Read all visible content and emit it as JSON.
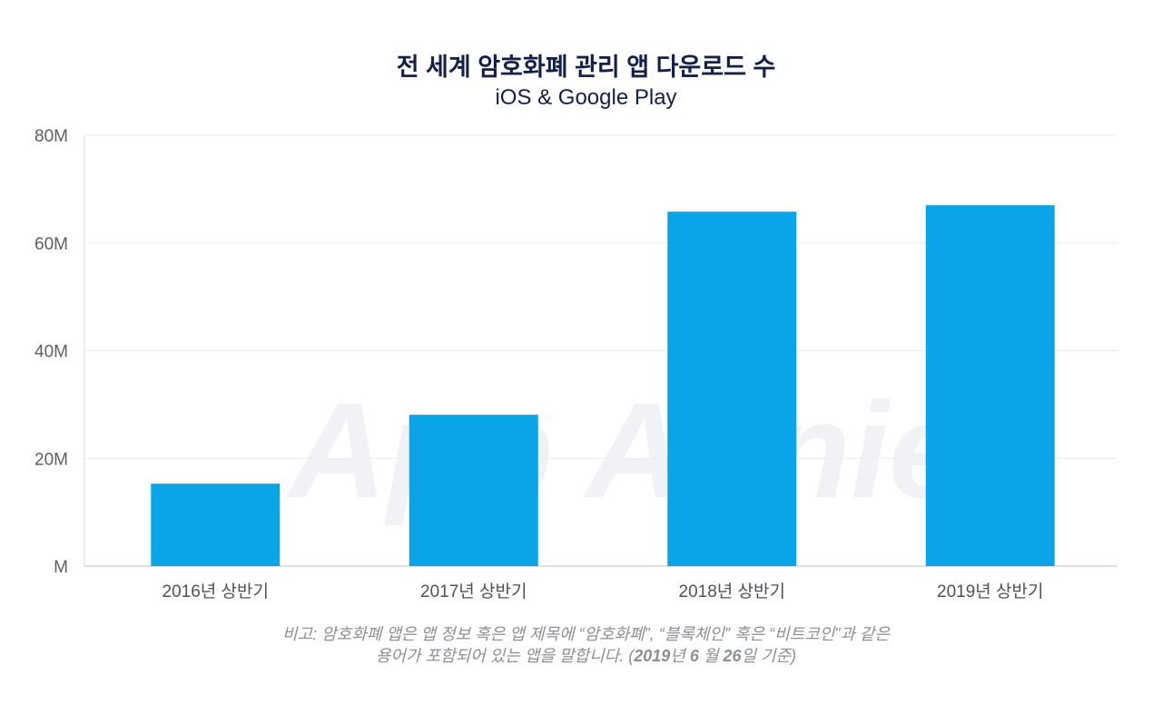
{
  "chart_data": {
    "type": "bar",
    "title": "전 세계 암호화폐 관리 앱 다운로드 수",
    "subtitle": "iOS & Google Play",
    "categories": [
      "2016년 상반기",
      "2017년 상반기",
      "2018년 상반기",
      "2019년 상반기"
    ],
    "values": [
      15.3,
      28.1,
      65.8,
      67.0
    ],
    "unit": "M",
    "ylim": [
      0,
      80
    ],
    "yticks": [
      0,
      20,
      40,
      60,
      80
    ],
    "ytick_labels": [
      "M",
      "20M",
      "40M",
      "60M",
      "80M"
    ],
    "xlabel": "",
    "ylabel": "",
    "grid": true,
    "bar_color": "#0aa5e8",
    "watermark": "App Annie"
  },
  "note": {
    "line1": "비고: 암호화폐 앱은 앱 정보 혹은 앱  제목에 “암호화폐”, “블록체인” 혹은  “비트코인”과 같은",
    "line2_prefix": "용어가 포함되어 있는 앱을 말합니다. (",
    "line2_year": "2019",
    "line2_year_unit": "년",
    "line2_month": "6",
    "line2_month_unit": "월",
    "line2_day": "26",
    "line2_day_unit": "일 기준)"
  }
}
